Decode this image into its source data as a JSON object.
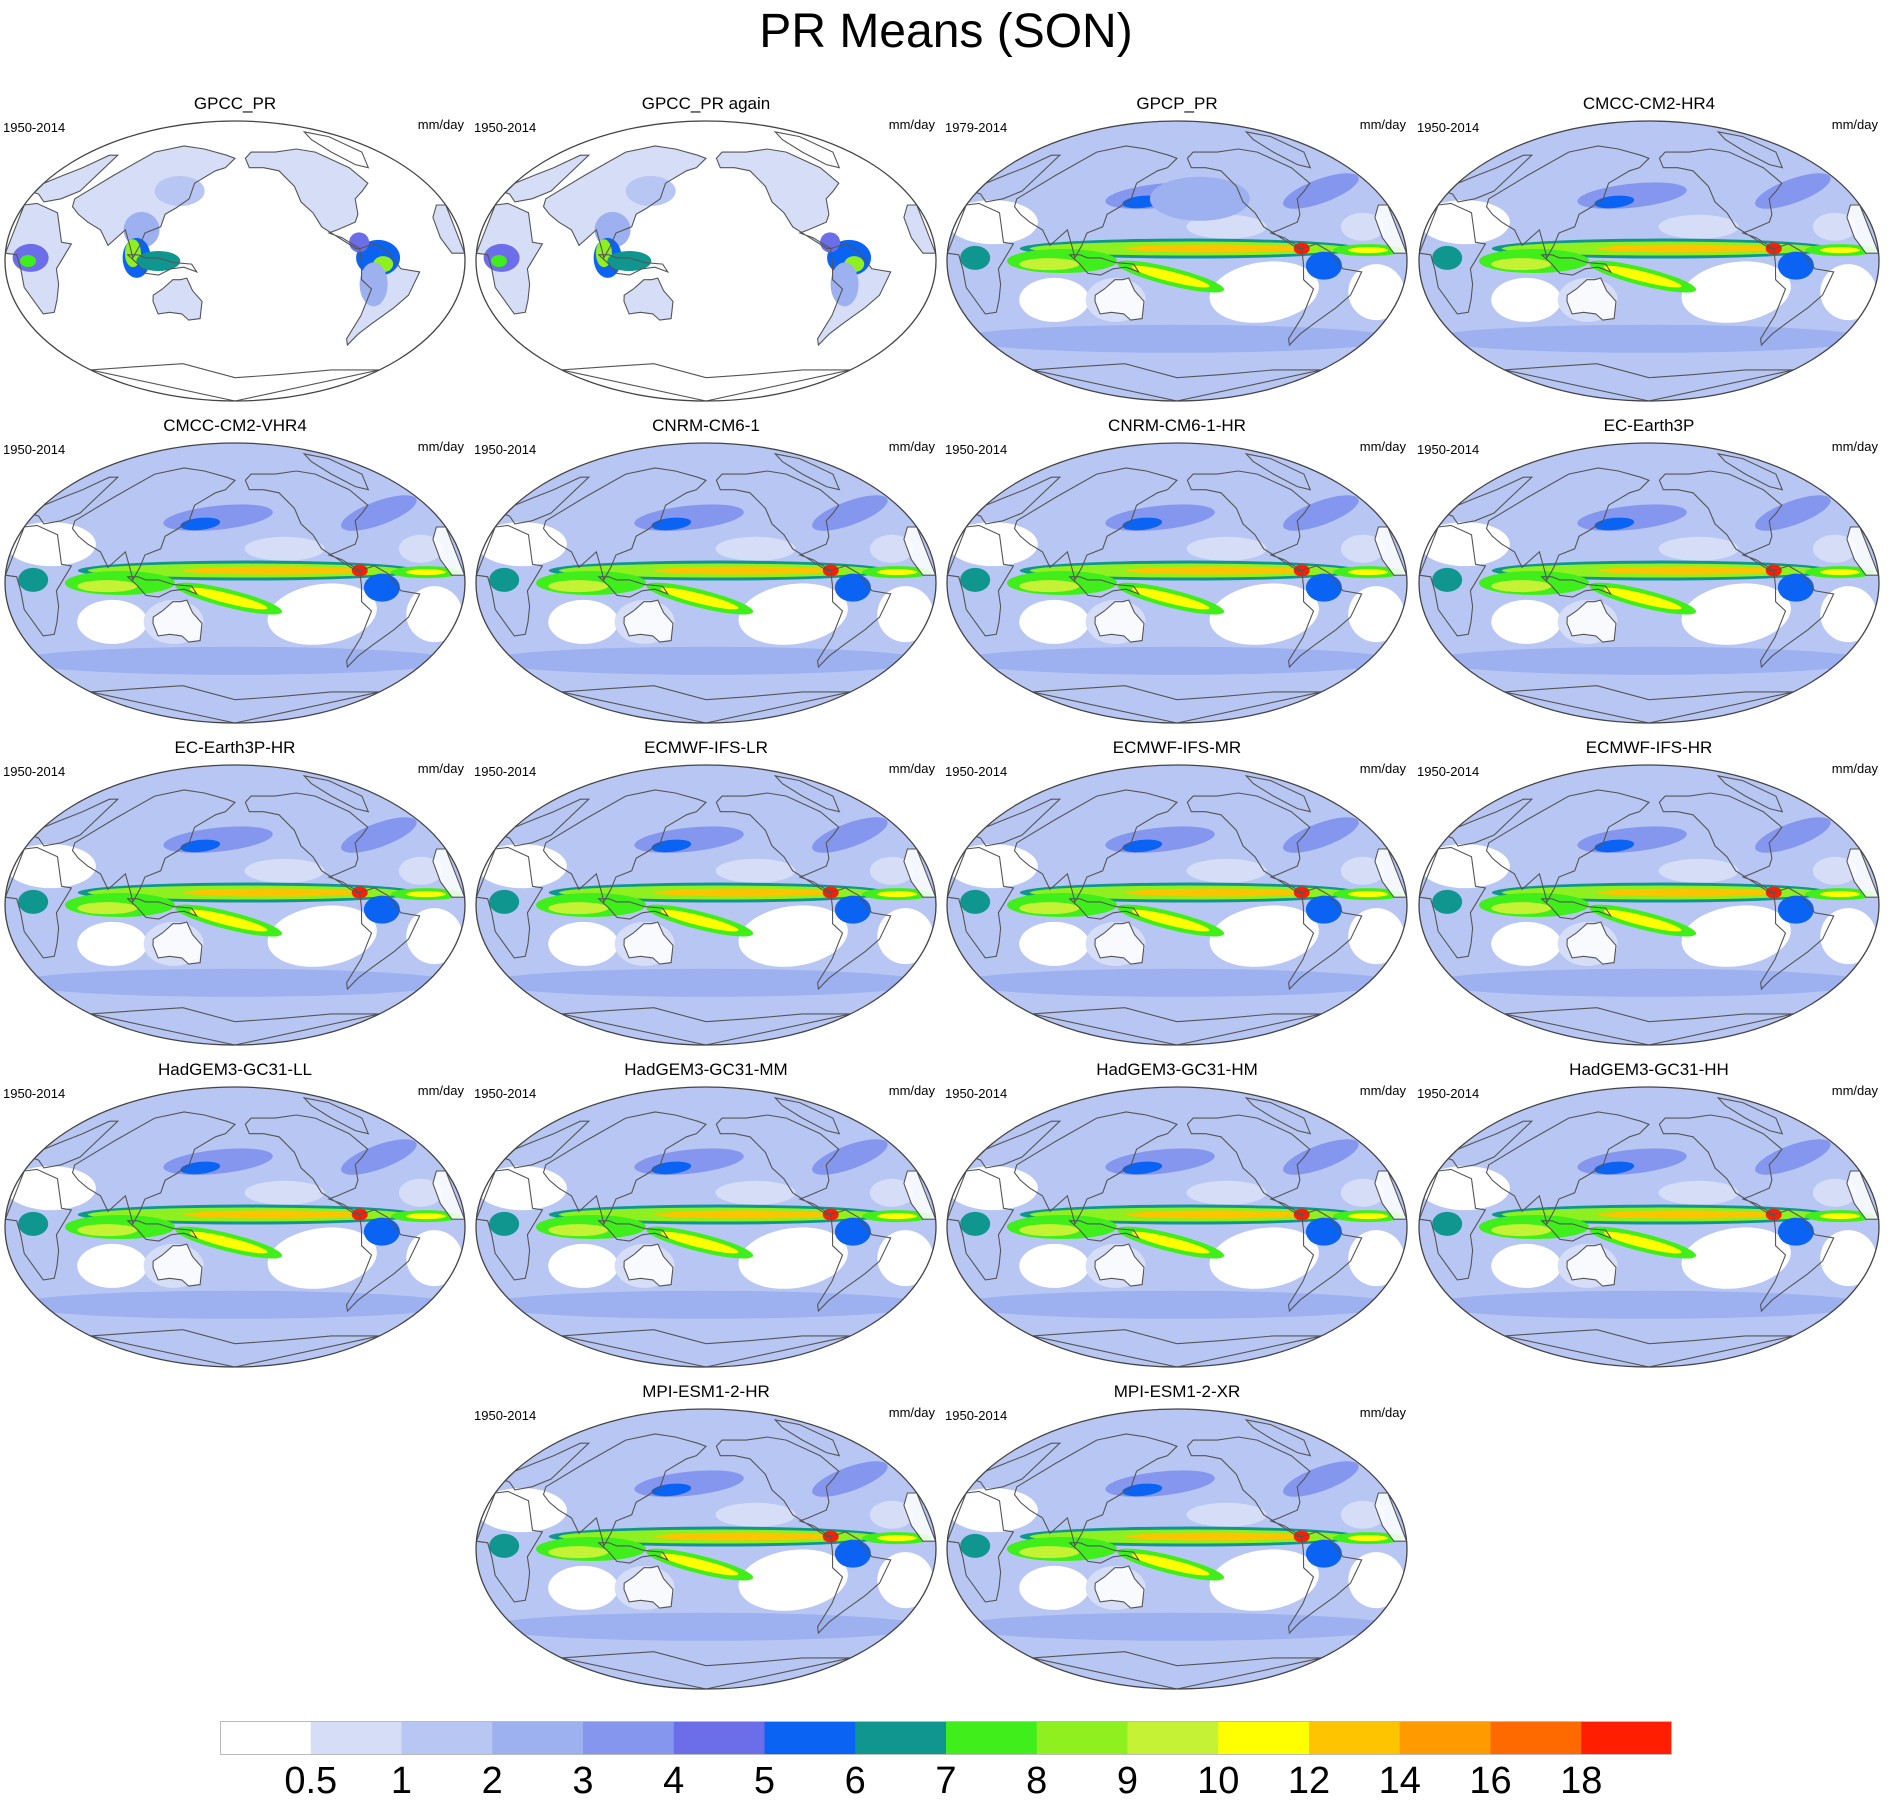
{
  "title": "PR Means (SON)",
  "units": "mm/day",
  "panels": [
    {
      "name": "GPCC_PR",
      "period": "1950-2014",
      "variant": "obs-land",
      "row": 0,
      "col": 0
    },
    {
      "name": "GPCC_PR again",
      "period": "1950-2014",
      "variant": "obs-land",
      "row": 0,
      "col": 1
    },
    {
      "name": "GPCP_PR",
      "period": "1979-2014",
      "variant": "obs",
      "row": 0,
      "col": 2
    },
    {
      "name": "CMCC-CM2-HR4",
      "period": "1950-2014",
      "variant": "model",
      "row": 0,
      "col": 3
    },
    {
      "name": "CMCC-CM2-VHR4",
      "period": "1950-2014",
      "variant": "model",
      "row": 1,
      "col": 0
    },
    {
      "name": "CNRM-CM6-1",
      "period": "1950-2014",
      "variant": "model",
      "row": 1,
      "col": 1
    },
    {
      "name": "CNRM-CM6-1-HR",
      "period": "1950-2014",
      "variant": "model",
      "row": 1,
      "col": 2
    },
    {
      "name": "EC-Earth3P",
      "period": "1950-2014",
      "variant": "model",
      "row": 1,
      "col": 3
    },
    {
      "name": "EC-Earth3P-HR",
      "period": "1950-2014",
      "variant": "model",
      "row": 2,
      "col": 0
    },
    {
      "name": "ECMWF-IFS-LR",
      "period": "1950-2014",
      "variant": "model",
      "row": 2,
      "col": 1
    },
    {
      "name": "ECMWF-IFS-MR",
      "period": "1950-2014",
      "variant": "model",
      "row": 2,
      "col": 2
    },
    {
      "name": "ECMWF-IFS-HR",
      "period": "1950-2014",
      "variant": "model",
      "row": 2,
      "col": 3
    },
    {
      "name": "HadGEM3-GC31-LL",
      "period": "1950-2014",
      "variant": "model",
      "row": 3,
      "col": 0
    },
    {
      "name": "HadGEM3-GC31-MM",
      "period": "1950-2014",
      "variant": "model",
      "row": 3,
      "col": 1
    },
    {
      "name": "HadGEM3-GC31-HM",
      "period": "1950-2014",
      "variant": "model",
      "row": 3,
      "col": 2
    },
    {
      "name": "HadGEM3-GC31-HH",
      "period": "1950-2014",
      "variant": "model",
      "row": 3,
      "col": 3
    },
    {
      "name": "MPI-ESM1-2-HR",
      "period": "1950-2014",
      "variant": "model",
      "row": 4,
      "col": 1
    },
    {
      "name": "MPI-ESM1-2-XR",
      "period": "1950-2014",
      "variant": "model",
      "row": 4,
      "col": 2
    }
  ],
  "colorbar": {
    "labels": [
      "0.5",
      "1",
      "2",
      "3",
      "4",
      "5",
      "6",
      "7",
      "8",
      "9",
      "10",
      "12",
      "14",
      "16",
      "18"
    ],
    "colors": [
      "#ffffff",
      "#d6ddf7",
      "#b8c6f3",
      "#9db0f0",
      "#8496ee",
      "#6b6ee8",
      "#0a63f2",
      "#0f968e",
      "#3fee1a",
      "#8ef01f",
      "#c5f234",
      "#ffff00",
      "#ffc400",
      "#ff9a00",
      "#ff6a00",
      "#ff1e00"
    ]
  },
  "palette": {
    "coast": "#555555",
    "frame": "#444444"
  }
}
